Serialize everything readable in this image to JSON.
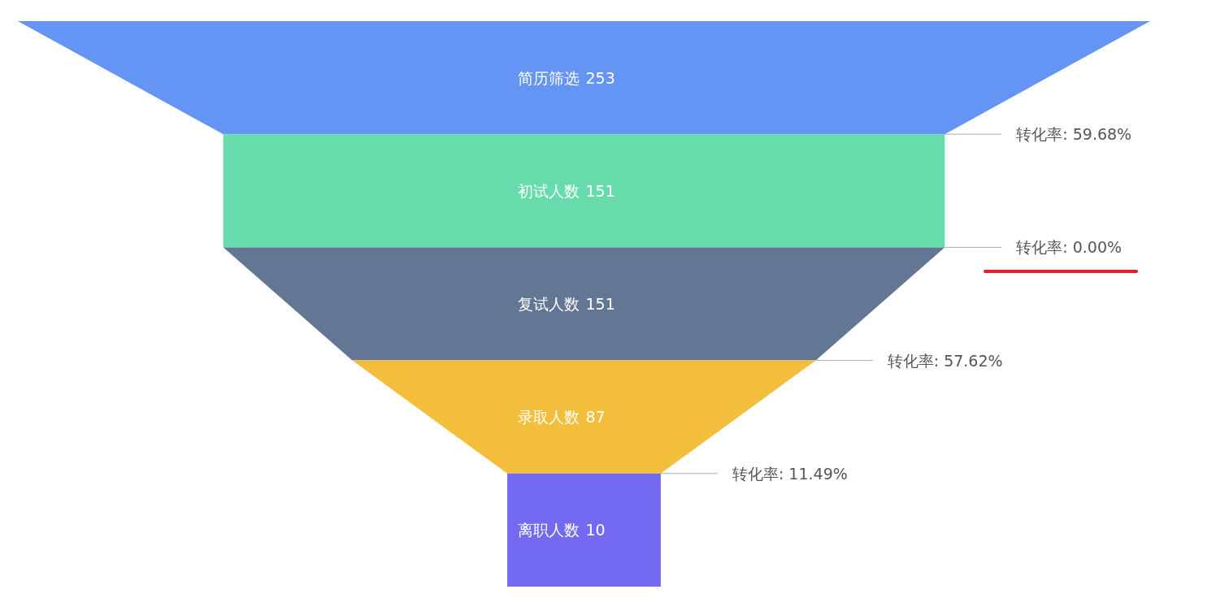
{
  "chart_data": {
    "type": "other",
    "categories": [
      "简历筛选",
      "初试人数",
      "复试人数",
      "录取人数",
      "离职人数"
    ],
    "values": [
      253,
      151,
      151,
      87,
      10
    ],
    "colors": [
      "#6595f4",
      "#68dbac",
      "#637694",
      "#f3be3b",
      "#746af1"
    ],
    "data_labels": true,
    "annotations": [
      "转化率: 59.68%",
      "转化率: 0.00%",
      "转化率: 57.62%",
      "转化率: 11.49%"
    ]
  }
}
